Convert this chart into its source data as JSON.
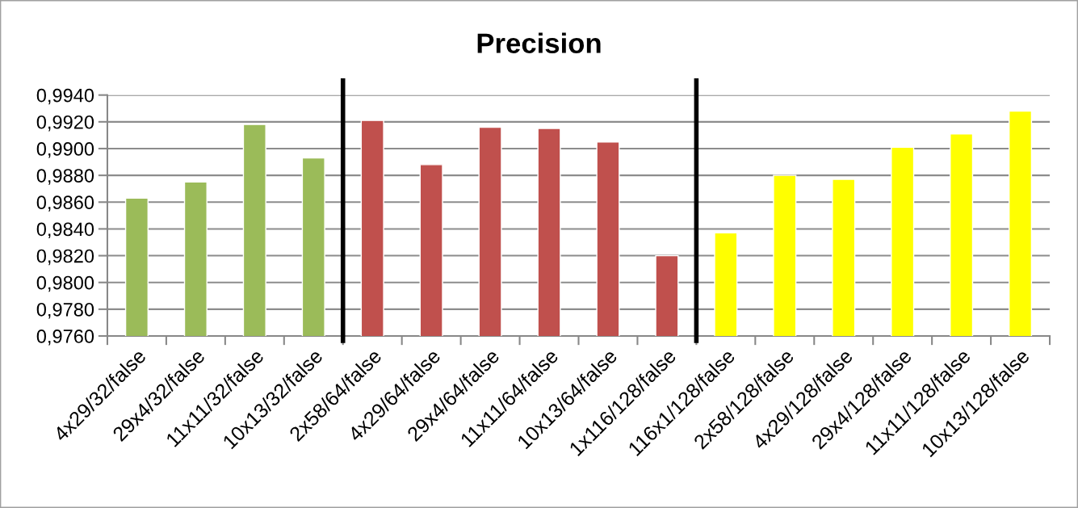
{
  "chart_data": {
    "type": "bar",
    "title": "Precision",
    "categories": [
      "4x29/32/false",
      "29x4/32/false",
      "11x11/32/false",
      "10x13/32/false",
      "2x58/64/false",
      "4x29/64/false",
      "29x4/64/false",
      "11x11/64/false",
      "10x13/64/false",
      "1x116/128/false",
      "116x1/128/false",
      "2x58/128/false",
      "4x29/128/false",
      "29x4/128/false",
      "11x11/128/false",
      "10x13/128/false"
    ],
    "values": [
      0.9863,
      0.9875,
      0.9918,
      0.9893,
      0.9921,
      0.9888,
      0.9916,
      0.9915,
      0.9905,
      0.982,
      0.9837,
      0.988,
      0.9877,
      0.9901,
      0.9911,
      0.9928
    ],
    "colors": [
      "#9bbb59",
      "#9bbb59",
      "#9bbb59",
      "#9bbb59",
      "#c0504d",
      "#c0504d",
      "#c0504d",
      "#c0504d",
      "#c0504d",
      "#c0504d",
      "#ffff00",
      "#ffff00",
      "#ffff00",
      "#ffff00",
      "#ffff00",
      "#ffff00"
    ],
    "ylim": [
      0.976,
      0.994
    ],
    "yticks": [
      {
        "value": 0.976,
        "label": "0,9760"
      },
      {
        "value": 0.978,
        "label": "0,9780"
      },
      {
        "value": 0.98,
        "label": "0,9800"
      },
      {
        "value": 0.982,
        "label": "0,9820"
      },
      {
        "value": 0.984,
        "label": "0,9840"
      },
      {
        "value": 0.986,
        "label": "0,9860"
      },
      {
        "value": 0.988,
        "label": "0,9880"
      },
      {
        "value": 0.99,
        "label": "0,9900"
      },
      {
        "value": 0.992,
        "label": "0,9920"
      },
      {
        "value": 0.994,
        "label": "0,9940"
      }
    ],
    "grid": "y"
  }
}
